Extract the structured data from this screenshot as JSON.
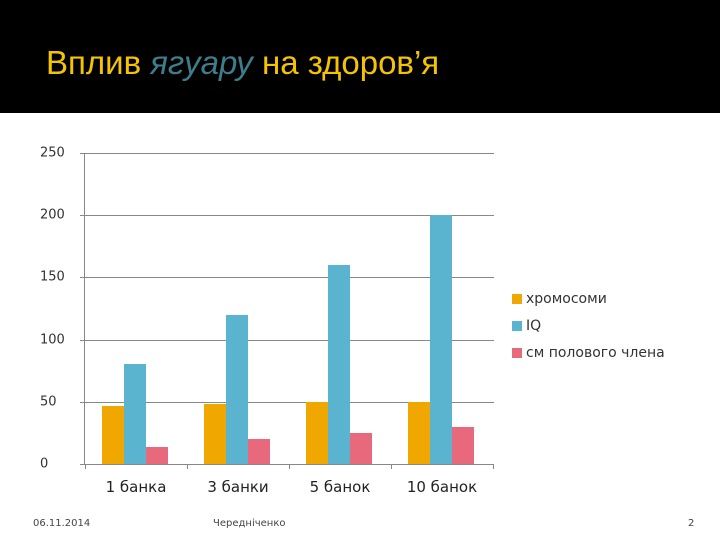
{
  "slide": {
    "title_parts": [
      "Вплив ",
      "ягуару",
      " на здоров’я"
    ],
    "footer": {
      "date": "06.11.2014",
      "author": "Чередніченко",
      "page": "2"
    }
  },
  "colors": {
    "orange": "#f0a800",
    "blue": "#5ab4cf",
    "pink": "#e8697c",
    "title": "#f5c400",
    "title_accent": "#3e7d8c"
  },
  "chart_data": {
    "type": "bar",
    "title": "",
    "xlabel": "",
    "ylabel": "",
    "ylim": [
      0,
      250
    ],
    "yticks": [
      "0",
      "50",
      "100",
      "150",
      "200",
      "250"
    ],
    "categories": [
      "1 банка",
      "3 банки",
      "5 банок",
      "10 банок"
    ],
    "series": [
      {
        "name": "хромосоми",
        "color": "#f0a800",
        "values": [
          47,
          48,
          50,
          50
        ]
      },
      {
        "name": "IQ",
        "color": "#5ab4cf",
        "values": [
          80,
          120,
          160,
          200
        ]
      },
      {
        "name": "см полового члена",
        "color": "#e8697c",
        "values": [
          14,
          20,
          25,
          30
        ]
      }
    ],
    "legend_position": "right",
    "grid": true
  }
}
